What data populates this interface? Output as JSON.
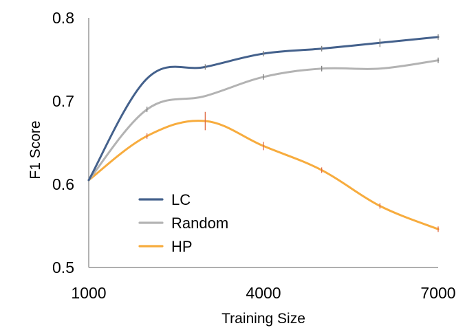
{
  "chart_data": {
    "type": "line",
    "title": "",
    "xlabel": "Training Size",
    "ylabel": "F1 Score",
    "xlim": [
      1000,
      7000
    ],
    "ylim": [
      0.5,
      0.8
    ],
    "xticks": [
      "1000",
      "4000",
      "7000"
    ],
    "yticks": [
      "0.5",
      "0.6",
      "0.7",
      "0.8"
    ],
    "legend_position": "lower-left",
    "grid": false,
    "series": [
      {
        "name": "LC",
        "color": "#44618c",
        "x": [
          1000,
          2000,
          3000,
          4000,
          5000,
          6000,
          7000
        ],
        "values": [
          0.605,
          0.727,
          0.741,
          0.757,
          0.763,
          0.77,
          0.777
        ],
        "error_bars": [
          0,
          0,
          0.003,
          0.003,
          0.003,
          0.005,
          0.003
        ],
        "error_color": "#7f7f7f"
      },
      {
        "name": "Random",
        "color": "#b3b3b3",
        "x": [
          1000,
          2000,
          3000,
          4000,
          5000,
          6000,
          7000
        ],
        "values": [
          0.605,
          0.69,
          0.706,
          0.729,
          0.739,
          0.739,
          0.749
        ],
        "error_bars": [
          0,
          0.003,
          0,
          0.003,
          0.003,
          0,
          0.003
        ],
        "error_color": "#7f7f7f"
      },
      {
        "name": "HP",
        "color": "#f7ac3e",
        "x": [
          1000,
          2000,
          3000,
          4000,
          5000,
          6000,
          7000
        ],
        "values": [
          0.605,
          0.658,
          0.676,
          0.646,
          0.617,
          0.574,
          0.546
        ],
        "error_bars": [
          0,
          0.003,
          0.011,
          0.005,
          0.003,
          0.003,
          0.003
        ],
        "error_color": "#e06a42"
      }
    ]
  }
}
